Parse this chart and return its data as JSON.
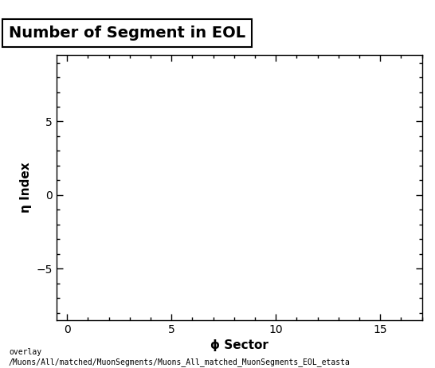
{
  "title": "Number of Segment in EOL",
  "xlabel": "ϕ Sector",
  "ylabel": "η Index",
  "xlim": [
    -0.5,
    17
  ],
  "ylim": [
    -8.5,
    9.5
  ],
  "xticks": [
    0,
    5,
    10,
    15
  ],
  "yticks": [
    -5,
    0,
    5
  ],
  "background_color": "#ffffff",
  "plot_bg_color": "#ffffff",
  "footer_line1": "overlay",
  "footer_line2": "/Muons/All/matched/MuonSegments/Muons_All_matched_MuonSegments_EOL_etasta",
  "title_fontsize": 14,
  "axis_label_fontsize": 11,
  "tick_fontsize": 10,
  "footer_fontsize": 7
}
